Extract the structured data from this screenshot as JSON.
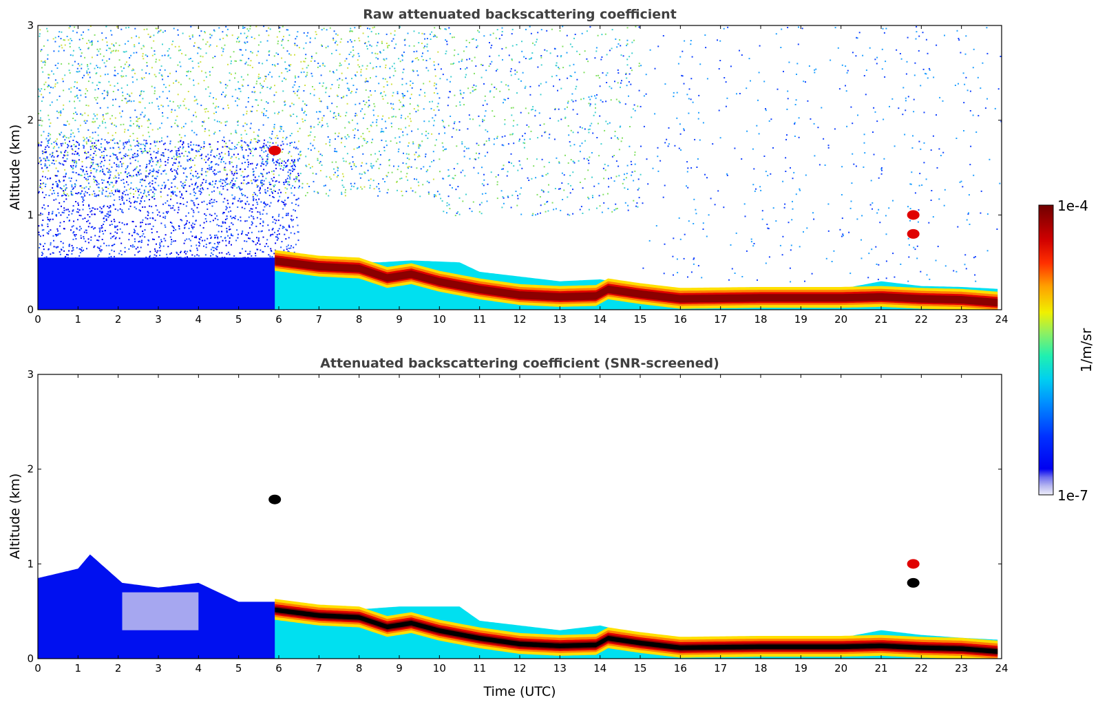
{
  "chart_data": [
    {
      "type": "heatmap",
      "title": "Raw attenuated backscattering coefficient",
      "xlabel": "",
      "ylabel": "Altitude (km)",
      "xlim": [
        0,
        24
      ],
      "ylim": [
        0,
        3
      ],
      "xticks": [
        "0",
        "1",
        "2",
        "3",
        "4",
        "5",
        "6",
        "7",
        "8",
        "9",
        "10",
        "11",
        "12",
        "13",
        "14",
        "15",
        "16",
        "17",
        "18",
        "19",
        "20",
        "21",
        "22",
        "23",
        "24"
      ],
      "yticks": [
        "0",
        "1",
        "2",
        "3"
      ],
      "layer_top_km": [
        {
          "x": 0,
          "y": 0.55
        },
        {
          "x": 2,
          "y": 0.6
        },
        {
          "x": 4,
          "y": 0.5
        },
        {
          "x": 5.9,
          "y": 0.6
        },
        {
          "x": 7,
          "y": 0.52
        },
        {
          "x": 8.5,
          "y": 0.5
        },
        {
          "x": 9.3,
          "y": 0.52
        },
        {
          "x": 10.5,
          "y": 0.5
        },
        {
          "x": 11,
          "y": 0.4
        },
        {
          "x": 12,
          "y": 0.35
        },
        {
          "x": 13,
          "y": 0.3
        },
        {
          "x": 14,
          "y": 0.32
        },
        {
          "x": 15,
          "y": 0.25
        },
        {
          "x": 16,
          "y": 0.22
        },
        {
          "x": 18,
          "y": 0.24
        },
        {
          "x": 20,
          "y": 0.22
        },
        {
          "x": 21,
          "y": 0.3
        },
        {
          "x": 22,
          "y": 0.25
        },
        {
          "x": 23,
          "y": 0.24
        },
        {
          "x": 23.9,
          "y": 0.22
        }
      ],
      "layer_core_km": [
        {
          "x": 5.9,
          "y": 0.52
        },
        {
          "x": 7,
          "y": 0.46
        },
        {
          "x": 8,
          "y": 0.44
        },
        {
          "x": 8.7,
          "y": 0.34
        },
        {
          "x": 9.3,
          "y": 0.38
        },
        {
          "x": 10,
          "y": 0.3
        },
        {
          "x": 11,
          "y": 0.22
        },
        {
          "x": 12,
          "y": 0.16
        },
        {
          "x": 13,
          "y": 0.14
        },
        {
          "x": 13.9,
          "y": 0.15
        },
        {
          "x": 14.2,
          "y": 0.22
        },
        {
          "x": 15,
          "y": 0.17
        },
        {
          "x": 16,
          "y": 0.12
        },
        {
          "x": 18,
          "y": 0.13
        },
        {
          "x": 20,
          "y": 0.13
        },
        {
          "x": 21,
          "y": 0.14
        },
        {
          "x": 22,
          "y": 0.12
        },
        {
          "x": 23,
          "y": 0.11
        },
        {
          "x": 23.9,
          "y": 0.08
        }
      ],
      "features": [
        {
          "time": 5.9,
          "altitude_km": 1.68,
          "note": "red speck"
        },
        {
          "time": 21.8,
          "altitude_km": 0.8,
          "note": "red"
        },
        {
          "time": 21.8,
          "altitude_km": 1.0,
          "note": "red"
        }
      ]
    },
    {
      "type": "heatmap",
      "title": "Attenuated backscattering coefficient (SNR-screened)",
      "xlabel": "Time (UTC)",
      "ylabel": "Altitude (km)",
      "xlim": [
        0,
        24
      ],
      "ylim": [
        0,
        3
      ],
      "xticks": [
        "0",
        "1",
        "2",
        "3",
        "4",
        "5",
        "6",
        "7",
        "8",
        "9",
        "10",
        "11",
        "12",
        "13",
        "14",
        "15",
        "16",
        "17",
        "18",
        "19",
        "20",
        "21",
        "22",
        "23",
        "24"
      ],
      "yticks": [
        "0",
        "1",
        "2",
        "3"
      ],
      "screened_top_km": [
        {
          "x": 0,
          "y": 0.85
        },
        {
          "x": 1,
          "y": 0.95
        },
        {
          "x": 1.3,
          "y": 1.1
        },
        {
          "x": 1.7,
          "y": 0.95
        },
        {
          "x": 2.1,
          "y": 0.8
        },
        {
          "x": 3,
          "y": 0.75
        },
        {
          "x": 4,
          "y": 0.8
        },
        {
          "x": 4.5,
          "y": 0.7
        },
        {
          "x": 5,
          "y": 0.6
        },
        {
          "x": 5.9,
          "y": 0.6
        },
        {
          "x": 7,
          "y": 0.55
        },
        {
          "x": 8,
          "y": 0.52
        },
        {
          "x": 9,
          "y": 0.55
        },
        {
          "x": 10.5,
          "y": 0.55
        },
        {
          "x": 11,
          "y": 0.4
        },
        {
          "x": 12,
          "y": 0.35
        },
        {
          "x": 13,
          "y": 0.3
        },
        {
          "x": 14,
          "y": 0.35
        },
        {
          "x": 15,
          "y": 0.25
        },
        {
          "x": 16,
          "y": 0.22
        },
        {
          "x": 18,
          "y": 0.24
        },
        {
          "x": 20,
          "y": 0.22
        },
        {
          "x": 21,
          "y": 0.3
        },
        {
          "x": 22,
          "y": 0.25
        },
        {
          "x": 23,
          "y": 0.22
        },
        {
          "x": 23.9,
          "y": 0.2
        }
      ],
      "features": [
        {
          "time": 5.9,
          "altitude_km": 1.68,
          "note": "black"
        },
        {
          "time": 21.8,
          "altitude_km": 0.8,
          "note": "black/red"
        },
        {
          "time": 21.8,
          "altitude_km": 1.0,
          "note": "red"
        }
      ]
    }
  ],
  "colorbar": {
    "label": "1/m/sr",
    "max_label": "1e-4",
    "min_label": "1e-7",
    "scale": "log",
    "colormap": [
      "#e8e8f8",
      "#b0b0ee",
      "#6a6aee",
      "#0000f0",
      "#0020ff",
      "#0070ff",
      "#00b0ff",
      "#00e0e0",
      "#30f0a0",
      "#a0f050",
      "#f0f000",
      "#ffb000",
      "#ff5000",
      "#e00000",
      "#900000",
      "#700000"
    ]
  },
  "colors": {
    "layer_dark": "#8b0000",
    "layer_red": "#e00000",
    "layer_orange": "#ff8000",
    "layer_yellow": "#ffe000",
    "layer_cyan": "#00e0f0",
    "blue": "#0010f0",
    "screened_core": "#000000"
  }
}
